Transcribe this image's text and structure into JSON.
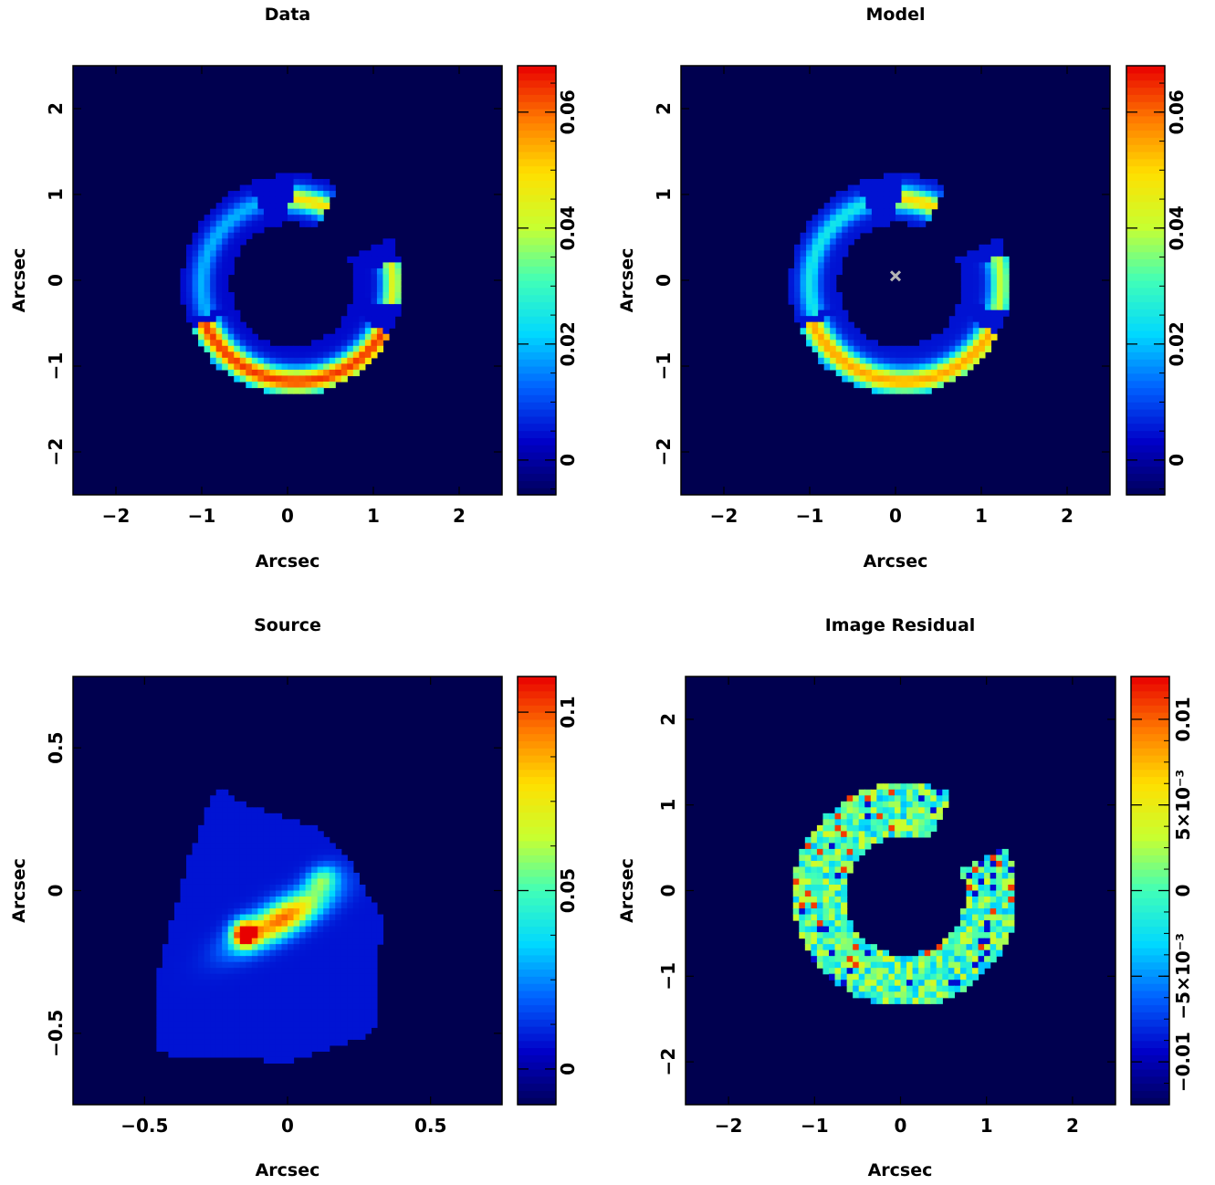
{
  "colormap": [
    "#00005a",
    "#0000c8",
    "#0060ff",
    "#00d8ff",
    "#40ffb8",
    "#c8ff30",
    "#ffe000",
    "#ff7a00",
    "#e80000"
  ],
  "background_color": "#00004f",
  "chart_data": [
    {
      "type": "heatmap",
      "title": "Data",
      "xlabel": "Arcsec",
      "ylabel": "Arcsec",
      "xlim": [
        -2.5,
        2.5
      ],
      "ylim": [
        -2.5,
        2.5
      ],
      "xticks": [
        {
          "v": -2,
          "label": "−2"
        },
        {
          "v": -1,
          "label": "−1"
        },
        {
          "v": 0,
          "label": "0"
        },
        {
          "v": 1,
          "label": "1"
        },
        {
          "v": 2,
          "label": "2"
        }
      ],
      "yticks": [
        {
          "v": -2,
          "label": "−2"
        },
        {
          "v": -1,
          "label": "−1"
        },
        {
          "v": 0,
          "label": "0"
        },
        {
          "v": 1,
          "label": "1"
        },
        {
          "v": 2,
          "label": "2"
        }
      ],
      "colorbar": {
        "range": [
          -0.006,
          0.068
        ],
        "ticks": [
          {
            "v": 0,
            "label": "0"
          },
          {
            "v": 0.02,
            "label": "0.02"
          },
          {
            "v": 0.04,
            "label": "0.04"
          },
          {
            "v": 0.06,
            "label": "0.06"
          }
        ]
      },
      "features": {
        "region": {
          "cx": 0.05,
          "cy": -0.05,
          "r": 1.0,
          "w": 0.28,
          "gap_from": 25,
          "gap_to": 65,
          "level": 0.004
        },
        "arcs": [
          {
            "cx": 0.0,
            "cy": -0.1,
            "r": 1.05,
            "w": 0.09,
            "from": 55,
            "to": 88,
            "peak": 0.045
          },
          {
            "cx": 0.05,
            "cy": -0.05,
            "r": 1.18,
            "w": 0.09,
            "from": -12,
            "to": 12,
            "peak": 0.04
          },
          {
            "cx": 0.1,
            "cy": 0.0,
            "r": 1.18,
            "w": 0.1,
            "from": 205,
            "to": 330,
            "peak": 0.06
          },
          {
            "cx": 0.0,
            "cy": -0.05,
            "r": 1.0,
            "w": 0.08,
            "from": 110,
            "to": 200,
            "peak": 0.015
          }
        ],
        "marker": null
      }
    },
    {
      "type": "heatmap",
      "title": "Model",
      "xlabel": "Arcsec",
      "ylabel": "Arcsec",
      "xlim": [
        -2.5,
        2.5
      ],
      "ylim": [
        -2.5,
        2.5
      ],
      "xticks": [
        {
          "v": -2,
          "label": "−2"
        },
        {
          "v": -1,
          "label": "−1"
        },
        {
          "v": 0,
          "label": "0"
        },
        {
          "v": 1,
          "label": "1"
        },
        {
          "v": 2,
          "label": "2"
        }
      ],
      "yticks": [
        {
          "v": -2,
          "label": "−2"
        },
        {
          "v": -1,
          "label": "−1"
        },
        {
          "v": 0,
          "label": "0"
        },
        {
          "v": 1,
          "label": "1"
        },
        {
          "v": 2,
          "label": "2"
        }
      ],
      "colorbar": {
        "range": [
          -0.006,
          0.068
        ],
        "ticks": [
          {
            "v": 0,
            "label": "0"
          },
          {
            "v": 0.02,
            "label": "0.02"
          },
          {
            "v": 0.04,
            "label": "0.04"
          },
          {
            "v": 0.06,
            "label": "0.06"
          }
        ]
      },
      "features": {
        "region": {
          "cx": 0.05,
          "cy": -0.05,
          "r": 1.0,
          "w": 0.28,
          "gap_from": 25,
          "gap_to": 65,
          "level": 0.005
        },
        "arcs": [
          {
            "cx": 0.0,
            "cy": -0.1,
            "r": 1.05,
            "w": 0.09,
            "from": 55,
            "to": 88,
            "peak": 0.045
          },
          {
            "cx": 0.05,
            "cy": -0.05,
            "r": 1.18,
            "w": 0.09,
            "from": -15,
            "to": 15,
            "peak": 0.035
          },
          {
            "cx": 0.1,
            "cy": 0.0,
            "r": 1.18,
            "w": 0.1,
            "from": 205,
            "to": 330,
            "peak": 0.05
          },
          {
            "cx": 0.0,
            "cy": -0.05,
            "r": 1.0,
            "w": 0.08,
            "from": 110,
            "to": 200,
            "peak": 0.02
          }
        ],
        "marker": {
          "x": 0.0,
          "y": 0.05,
          "color": "#b4b4b4"
        }
      }
    },
    {
      "type": "heatmap",
      "title": "Source",
      "xlabel": "Arcsec",
      "ylabel": "Arcsec",
      "xlim": [
        -0.75,
        0.75
      ],
      "ylim": [
        -0.75,
        0.75
      ],
      "xticks": [
        {
          "v": -0.5,
          "label": "−0.5"
        },
        {
          "v": 0,
          "label": "0"
        },
        {
          "v": 0.5,
          "label": "0.5"
        }
      ],
      "yticks": [
        {
          "v": -0.5,
          "label": "−0.5"
        },
        {
          "v": 0,
          "label": "0"
        },
        {
          "v": 0.5,
          "label": "0.5"
        }
      ],
      "colorbar": {
        "range": [
          -0.01,
          0.11
        ],
        "ticks": [
          {
            "v": 0,
            "label": "0"
          },
          {
            "v": 0.05,
            "label": "0.05"
          },
          {
            "v": 0.1,
            "label": "0.1"
          }
        ]
      },
      "features": {
        "polygon": [
          [
            -0.25,
            0.37
          ],
          [
            -0.15,
            0.3
          ],
          [
            0.1,
            0.22
          ],
          [
            0.22,
            0.1
          ],
          [
            0.33,
            -0.1
          ],
          [
            0.3,
            -0.5
          ],
          [
            0.0,
            -0.6
          ],
          [
            -0.45,
            -0.57
          ],
          [
            -0.47,
            -0.35
          ],
          [
            -0.35,
            0.1
          ]
        ],
        "polygon_level": 0.008,
        "blobs": [
          {
            "x": -0.02,
            "y": -0.1,
            "sx": 0.12,
            "sy": 0.04,
            "angle": 30,
            "peak": 0.09
          },
          {
            "x": -0.15,
            "y": -0.15,
            "sx": 0.03,
            "sy": 0.03,
            "angle": 0,
            "peak": 0.1
          },
          {
            "x": 0.12,
            "y": 0.04,
            "sx": 0.04,
            "sy": 0.03,
            "angle": 30,
            "peak": 0.04
          }
        ]
      }
    },
    {
      "type": "heatmap",
      "title": "Image Residual",
      "xlabel": "Arcsec",
      "ylabel": "Arcsec",
      "xlim": [
        -2.5,
        2.5
      ],
      "ylim": [
        -2.5,
        2.5
      ],
      "xticks": [
        {
          "v": -2,
          "label": "−2"
        },
        {
          "v": -1,
          "label": "−1"
        },
        {
          "v": 0,
          "label": "0"
        },
        {
          "v": 1,
          "label": "1"
        },
        {
          "v": 2,
          "label": "2"
        }
      ],
      "yticks": [
        {
          "v": -2,
          "label": "−2"
        },
        {
          "v": -1,
          "label": "−1"
        },
        {
          "v": 0,
          "label": "0"
        },
        {
          "v": 1,
          "label": "1"
        },
        {
          "v": 2,
          "label": "2"
        }
      ],
      "colorbar": {
        "range": [
          -0.0125,
          0.0125
        ],
        "ticks": [
          {
            "v": -0.01,
            "label": "−0.01"
          },
          {
            "v": -0.005,
            "label": "−5×10⁻³"
          },
          {
            "v": 0,
            "label": "0"
          },
          {
            "v": 0.005,
            "label": "5×10⁻³"
          },
          {
            "v": 0.01,
            "label": "0.01"
          }
        ]
      },
      "features": {
        "region": {
          "cx": 0.05,
          "cy": -0.05,
          "r": 1.0,
          "w": 0.3,
          "gap_from": 25,
          "gap_to": 65,
          "level": 0.0
        }
      }
    }
  ]
}
